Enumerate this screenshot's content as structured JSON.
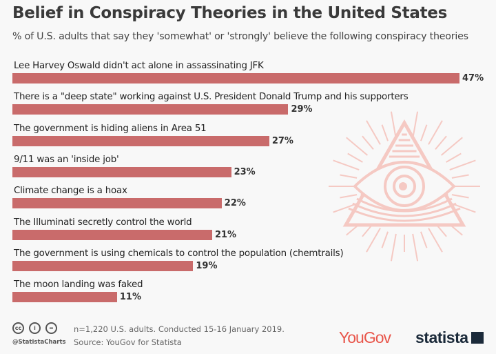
{
  "chart_data": {
    "type": "bar",
    "orientation": "horizontal",
    "title": "Belief in Conspiracy Theories in the United States",
    "subtitle": "% of U.S. adults that say they 'somewhat' or 'strongly' believe the following conspiracy theories",
    "categories": [
      "Lee Harvey Oswald didn't act alone in assassinating JFK",
      "There is a \"deep state\" working against U.S. President Donald Trump and his supporters",
      "The government is hiding aliens in Area 51",
      "9/11 was an 'inside job'",
      "Climate change is a hoax",
      "The Illuminati secretly control the world",
      "The government is using chemicals to control the population (chemtrails)",
      "The moon landing was faked"
    ],
    "values": [
      47,
      29,
      27,
      23,
      22,
      21,
      19,
      11
    ],
    "value_labels": [
      "47%",
      "29%",
      "27%",
      "23%",
      "22%",
      "21%",
      "19%",
      "11%"
    ],
    "xlim": [
      0,
      47
    ],
    "grid": false,
    "bar_color": "#c96b6b"
  },
  "illustration": "all-seeing-eye-pyramid",
  "illustration_color": "#f5c9c3",
  "footer": {
    "note": "n=1,220 U.S. adults. Conducted 15-16 January 2019.",
    "source": "Source: YouGov for Statista",
    "handle": "@StatistaCharts",
    "license_icons": [
      "cc",
      "by",
      "nd"
    ],
    "logos": [
      "YouGov",
      "statista"
    ]
  }
}
